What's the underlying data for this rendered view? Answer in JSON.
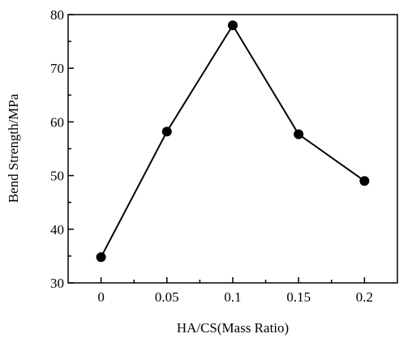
{
  "chart_data": {
    "type": "line",
    "title": "",
    "xlabel": "HA/CS(Mass Ratio)",
    "ylabel": "Bend Strength/MPa",
    "x": [
      0,
      0.05,
      0.1,
      0.15,
      0.2
    ],
    "x_tick_labels": [
      "0",
      "0.05",
      "0.1",
      "0.15",
      "0.2"
    ],
    "y_tick_labels": [
      "30",
      "40",
      "50",
      "60",
      "70",
      "80"
    ],
    "xlim": [
      -0.025,
      0.225
    ],
    "ylim": [
      30,
      80
    ],
    "y_ticks": [
      30,
      40,
      50,
      60,
      70,
      80
    ],
    "series": [
      {
        "values": [
          34.8,
          58.2,
          78,
          57.7,
          49
        ]
      }
    ],
    "marker": "filled-circle",
    "line_color": "#000000",
    "grid": false,
    "legend": "none"
  }
}
